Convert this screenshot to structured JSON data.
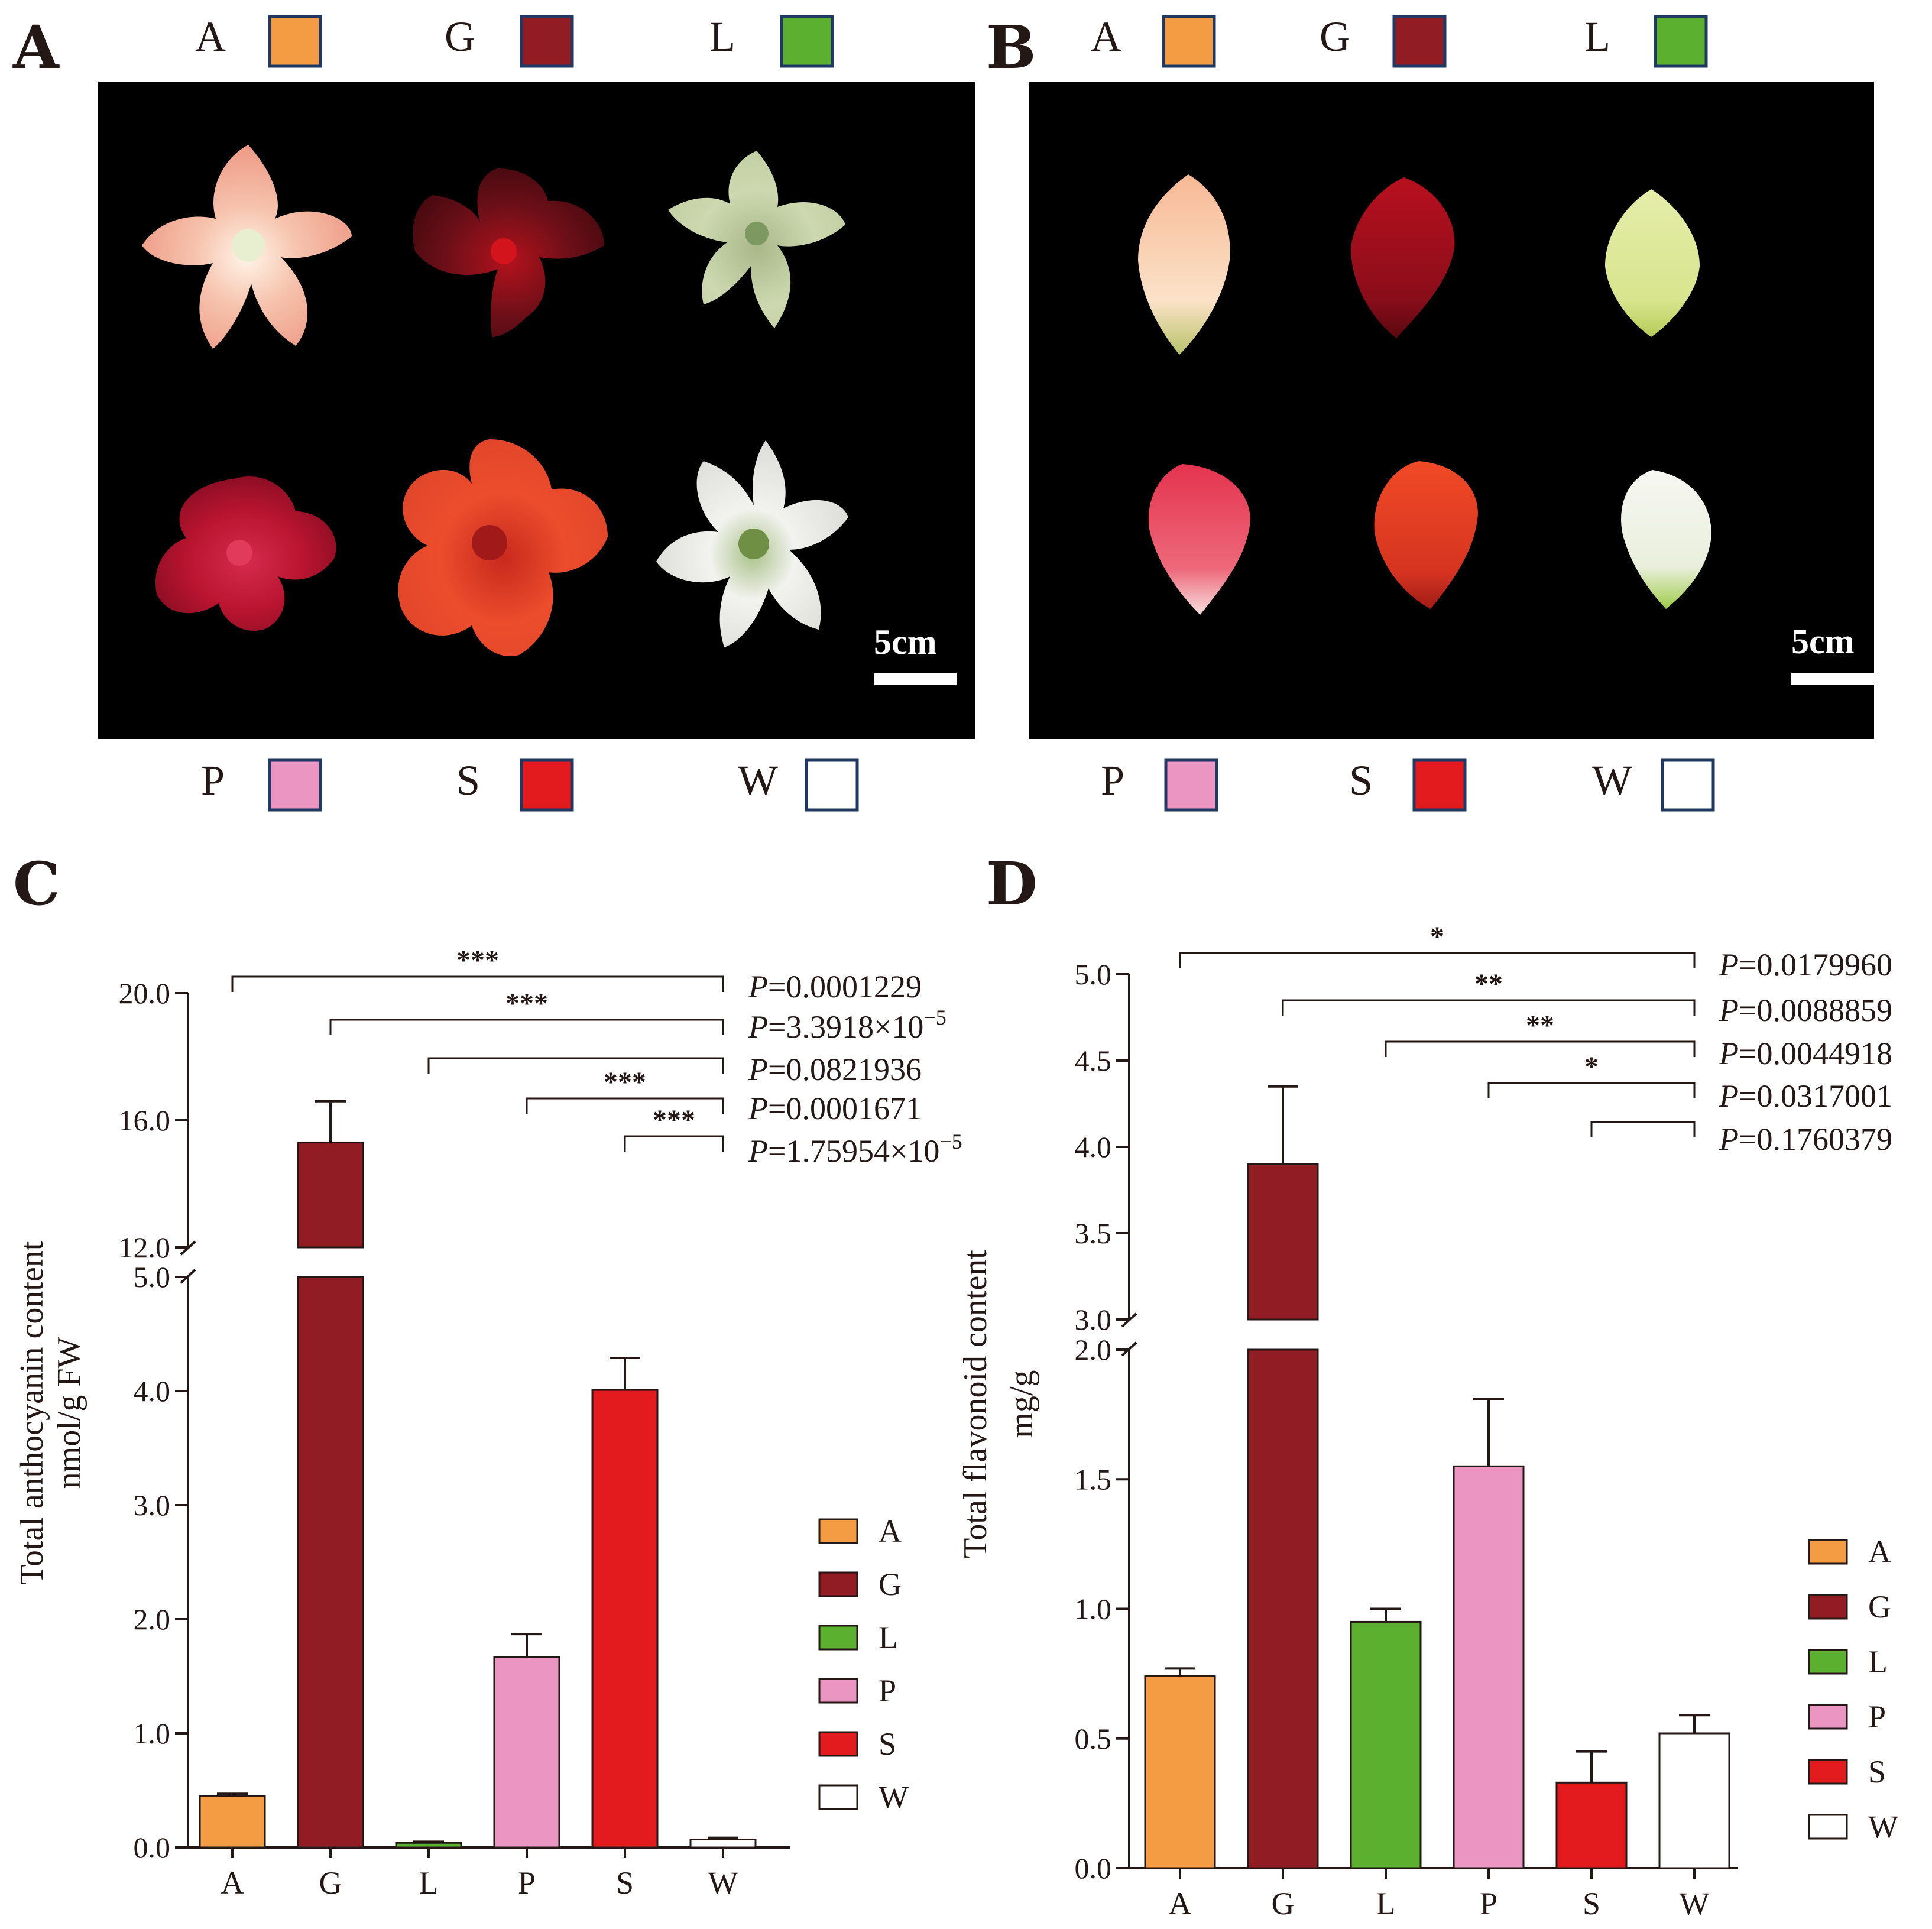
{
  "figure": {
    "panel_labels": [
      "A",
      "B",
      "C",
      "D"
    ],
    "scale_bar_label": "5cm",
    "colors": {
      "A": "#F39C44",
      "G": "#921C24",
      "L": "#5BB12F",
      "P": "#EB95C2",
      "S": "#E31B1E",
      "W": "#FFFFFF",
      "box_border": "#1F3864",
      "axis": "#231815",
      "photo_bg": "#000000"
    },
    "top_legend": {
      "row1": [
        {
          "label": "A",
          "color": "#F39C44"
        },
        {
          "label": "G",
          "color": "#921C24"
        },
        {
          "label": "L",
          "color": "#5BB12F"
        }
      ],
      "row2": [
        {
          "label": "P",
          "color": "#EB95C2"
        },
        {
          "label": "S",
          "color": "#E31B1E"
        },
        {
          "label": "W",
          "color": "#FFFFFF"
        }
      ]
    },
    "photo_grid": {
      "rows": [
        [
          "A",
          "G",
          "L"
        ],
        [
          "P",
          "S",
          "W"
        ]
      ]
    }
  },
  "chart_data": [
    {
      "panel": "C",
      "type": "bar",
      "categories": [
        "A",
        "G",
        "L",
        "P",
        "S",
        "W"
      ],
      "values": [
        0.45,
        15.3,
        0.04,
        1.67,
        4.01,
        0.07
      ],
      "errors": [
        0.02,
        1.3,
        0.01,
        0.2,
        0.28,
        0.015
      ],
      "ylabel_line1": "Total anthocyanin content",
      "ylabel_line2": "nmol/g FW",
      "axis_break": {
        "lower_range": [
          0,
          5.0
        ],
        "upper_range": [
          12.0,
          20.0
        ]
      },
      "lower_ticks": [
        "0.0",
        "1.0",
        "2.0",
        "3.0",
        "4.0",
        "5.0"
      ],
      "upper_ticks": [
        "12.0",
        "16.0",
        "20.0"
      ],
      "comparisons": [
        {
          "from": "A",
          "to": "W",
          "sig": "***",
          "p_prefix": "P",
          "p_value": "=0.0001229",
          "p_sup": ""
        },
        {
          "from": "G",
          "to": "W",
          "sig": "***",
          "p_prefix": "P",
          "p_value": "=3.3918×10",
          "p_sup": "−5"
        },
        {
          "from": "L",
          "to": "W",
          "sig": "",
          "p_prefix": "P",
          "p_value": "=0.0821936",
          "p_sup": ""
        },
        {
          "from": "P",
          "to": "W",
          "sig": "***",
          "p_prefix": "P",
          "p_value": "=0.0001671",
          "p_sup": ""
        },
        {
          "from": "S",
          "to": "W",
          "sig": "***",
          "p_prefix": "P",
          "p_value": "=1.75954×10",
          "p_sup": "−5"
        }
      ],
      "legend": [
        "A",
        "G",
        "L",
        "P",
        "S",
        "W"
      ]
    },
    {
      "panel": "D",
      "type": "bar",
      "categories": [
        "A",
        "G",
        "L",
        "P",
        "S",
        "W"
      ],
      "values": [
        0.74,
        3.9,
        0.95,
        1.55,
        0.33,
        0.52
      ],
      "errors": [
        0.03,
        0.45,
        0.05,
        0.26,
        0.12,
        0.07
      ],
      "ylabel_line1": "Total flavonoid content",
      "ylabel_line2": "mg/g",
      "axis_break": {
        "lower_range": [
          0,
          2.0
        ],
        "upper_range": [
          3.0,
          5.0
        ]
      },
      "lower_ticks": [
        "0.0",
        "0.5",
        "1.0",
        "1.5",
        "2.0"
      ],
      "upper_ticks": [
        "3.0",
        "3.5",
        "4.0",
        "4.5",
        "5.0"
      ],
      "comparisons": [
        {
          "from": "A",
          "to": "W",
          "sig": "*",
          "p_prefix": "P",
          "p_value": "=0.0179960",
          "p_sup": ""
        },
        {
          "from": "G",
          "to": "W",
          "sig": "**",
          "p_prefix": "P",
          "p_value": "=0.0088859",
          "p_sup": ""
        },
        {
          "from": "L",
          "to": "W",
          "sig": "**",
          "p_prefix": "P",
          "p_value": "=0.0044918",
          "p_sup": ""
        },
        {
          "from": "P",
          "to": "W",
          "sig": "*",
          "p_prefix": "P",
          "p_value": "=0.0317001",
          "p_sup": ""
        },
        {
          "from": "S",
          "to": "W",
          "sig": "",
          "p_prefix": "P",
          "p_value": "=0.1760379",
          "p_sup": ""
        }
      ],
      "legend": [
        "A",
        "G",
        "L",
        "P",
        "S",
        "W"
      ]
    }
  ]
}
